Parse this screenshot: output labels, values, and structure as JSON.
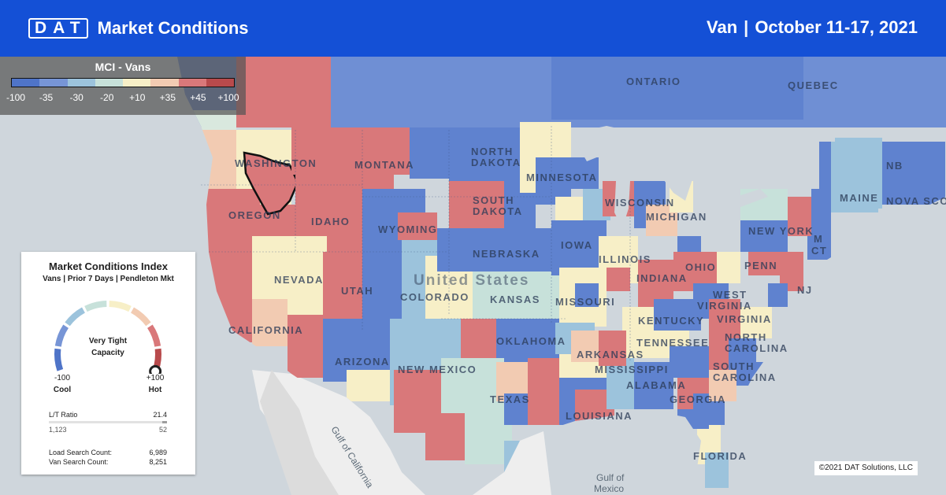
{
  "header": {
    "logo": "DAT",
    "title": "Market Conditions",
    "equipment": "Van",
    "separator": "|",
    "date_range": "October 11-17, 2021"
  },
  "mci_legend": {
    "title": "MCI - Vans",
    "ticks": [
      "-100",
      "-35",
      "-30",
      "-20",
      "+10",
      "+35",
      "+45",
      "+100"
    ],
    "colors": [
      "#4f74c8",
      "#7795d6",
      "#9cc3dc",
      "#c7e1da",
      "#f7efc7",
      "#f2cbb2",
      "#d9787a",
      "#b84a4c"
    ]
  },
  "map": {
    "labels": {
      "ontario": "ONTARIO",
      "quebec": "QUEBEC",
      "nb": "NB",
      "nova_scotia": "NOVA SCO",
      "maine": "MAINE",
      "washington": "WASHINGTON",
      "oregon": "OREGON",
      "california": "CALIFORNIA",
      "nevada": "NEVADA",
      "idaho": "IDAHO",
      "montana": "MONTANA",
      "wyoming": "WYOMING",
      "utah": "UTAH",
      "arizona": "ARIZONA",
      "colorado": "COLORADO",
      "new_mexico": "NEW MEXICO",
      "north_dakota_1": "NORTH",
      "north_dakota_2": "DAKOTA",
      "south_dakota_1": "SOUTH",
      "south_dakota_2": "DAKOTA",
      "nebraska": "NEBRASKA",
      "kansas": "KANSAS",
      "oklahoma": "OKLAHOMA",
      "texas": "TEXAS",
      "minnesota": "MINNESOTA",
      "iowa": "IOWA",
      "missouri": "MISSOURI",
      "arkansas": "ARKANSAS",
      "louisiana": "LOUISIANA",
      "wisconsin": "WISCONSIN",
      "illinois": "ILLINOIS",
      "michigan": "MICHIGAN",
      "indiana": "INDIANA",
      "ohio": "OHIO",
      "kentucky": "KENTUCKY",
      "tennessee": "TENNESSEE",
      "mississippi": "MISSISSIPPI",
      "alabama": "ALABAMA",
      "georgia": "GEORGIA",
      "florida": "FLORIDA",
      "south_carolina_1": "SOUTH",
      "south_carolina_2": "CAROLINA",
      "north_carolina_1": "NORTH",
      "north_carolina_2": "CAROLINA",
      "virginia": "VIRGINIA",
      "west_virginia_1": "WEST",
      "west_virginia_2": "VIRGINIA",
      "penn": "PENN",
      "new_york": "NEW YORK",
      "nj": "NJ",
      "ct": "CT",
      "ma": "M",
      "united_states": "United States",
      "gulf_california": "Gulf of California",
      "gulf_mexico_1": "Gulf of",
      "gulf_mexico_2": "Mexico"
    }
  },
  "card": {
    "title": "Market Conditions Index",
    "subtitle": "Vans | Prior 7 Days | Pendleton Mkt",
    "gauge_label_1": "Very Tight",
    "gauge_label_2": "Capacity",
    "gauge_value": 100,
    "min_value": "-100",
    "min_label": "Cool",
    "max_value": "+100",
    "max_label": "Hot",
    "lt_ratio_label": "L/T Ratio",
    "lt_ratio_value": "21.4",
    "loads_value": "1,123",
    "trucks_value": "52",
    "load_search_label": "Load Search Count:",
    "load_search_value": "6,989",
    "van_search_label": "Van Search Count:",
    "van_search_value": "8,251"
  },
  "copyright": "©2021 DAT Solutions, LLC"
}
